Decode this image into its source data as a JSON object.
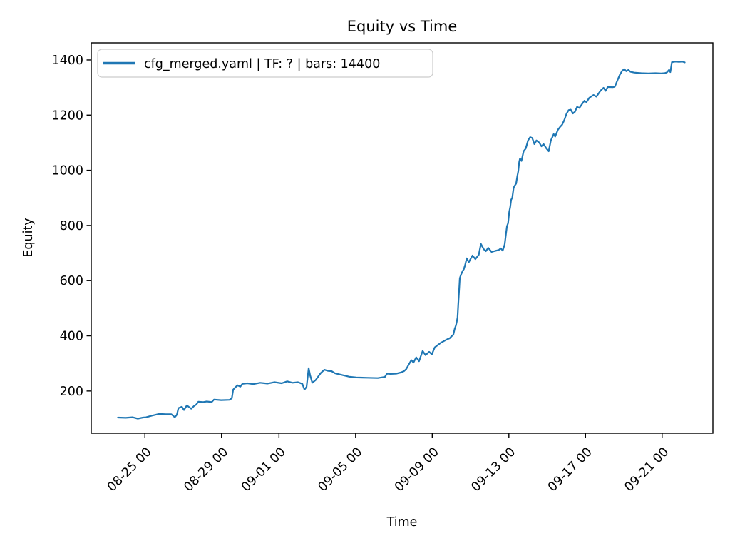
{
  "chart_data": {
    "type": "line",
    "title": "Equity vs Time",
    "xlabel": "Time",
    "ylabel": "Equity",
    "grid": false,
    "legend_position": "upper left",
    "legend": [
      {
        "label": "cfg_merged.yaml | TF: ? | bars: 14400",
        "color": "#1f77b4"
      }
    ],
    "x_unit": "days (0 = 08-23 00:00), labels show MM-DD HH",
    "xlim": [
      -0.8,
      31.65
    ],
    "ylim": [
      47,
      1462
    ],
    "xticks": {
      "positions": [
        2,
        6,
        9,
        13,
        17,
        21,
        25,
        29
      ],
      "labels": [
        "08-25 00",
        "08-29 00",
        "09-01 00",
        "09-05 00",
        "09-09 00",
        "09-13 00",
        "09-17 00",
        "09-21 00"
      ]
    },
    "yticks": [
      200,
      400,
      600,
      800,
      1000,
      1200,
      1400
    ],
    "series": [
      {
        "name": "cfg_merged.yaml | TF: ? | bars: 14400",
        "color": "#1f77b4",
        "linewidth": 2.2,
        "points": [
          [
            0.59,
            104
          ],
          [
            1.0,
            103
          ],
          [
            1.35,
            105
          ],
          [
            1.63,
            100
          ],
          [
            1.9,
            104
          ],
          [
            2.07,
            105
          ],
          [
            2.37,
            111
          ],
          [
            2.74,
            117
          ],
          [
            3.1,
            116
          ],
          [
            3.38,
            116
          ],
          [
            3.56,
            105
          ],
          [
            3.67,
            114
          ],
          [
            3.75,
            138
          ],
          [
            3.93,
            143
          ],
          [
            4.04,
            131
          ],
          [
            4.19,
            148
          ],
          [
            4.42,
            136
          ],
          [
            4.57,
            146
          ],
          [
            4.68,
            151
          ],
          [
            4.79,
            161
          ],
          [
            5.05,
            160
          ],
          [
            5.23,
            162
          ],
          [
            5.49,
            160
          ],
          [
            5.61,
            169
          ],
          [
            5.98,
            167
          ],
          [
            6.42,
            168
          ],
          [
            6.54,
            174
          ],
          [
            6.61,
            205
          ],
          [
            6.72,
            213
          ],
          [
            6.83,
            221
          ],
          [
            6.98,
            216
          ],
          [
            7.09,
            226
          ],
          [
            7.35,
            228
          ],
          [
            7.65,
            225
          ],
          [
            8.02,
            230
          ],
          [
            8.39,
            227
          ],
          [
            8.77,
            232
          ],
          [
            9.14,
            228
          ],
          [
            9.43,
            235
          ],
          [
            9.7,
            230
          ],
          [
            9.99,
            232
          ],
          [
            10.22,
            226
          ],
          [
            10.33,
            205
          ],
          [
            10.44,
            215
          ],
          [
            10.55,
            283
          ],
          [
            10.62,
            258
          ],
          [
            10.74,
            230
          ],
          [
            10.92,
            240
          ],
          [
            11.18,
            265
          ],
          [
            11.37,
            277
          ],
          [
            11.55,
            273
          ],
          [
            11.74,
            272
          ],
          [
            11.93,
            264
          ],
          [
            12.3,
            258
          ],
          [
            12.67,
            252
          ],
          [
            13.04,
            249
          ],
          [
            13.6,
            248
          ],
          [
            14.16,
            247
          ],
          [
            14.53,
            251
          ],
          [
            14.64,
            263
          ],
          [
            14.83,
            262
          ],
          [
            15.12,
            263
          ],
          [
            15.35,
            267
          ],
          [
            15.53,
            272
          ],
          [
            15.65,
            280
          ],
          [
            15.76,
            294
          ],
          [
            15.91,
            312
          ],
          [
            16.02,
            303
          ],
          [
            16.16,
            322
          ],
          [
            16.31,
            308
          ],
          [
            16.5,
            345
          ],
          [
            16.65,
            330
          ],
          [
            16.84,
            342
          ],
          [
            16.98,
            333
          ],
          [
            17.13,
            358
          ],
          [
            17.28,
            366
          ],
          [
            17.43,
            374
          ],
          [
            17.61,
            381
          ],
          [
            17.8,
            388
          ],
          [
            17.91,
            391
          ],
          [
            18.02,
            399
          ],
          [
            18.1,
            404
          ],
          [
            18.17,
            425
          ],
          [
            18.24,
            438
          ],
          [
            18.28,
            451
          ],
          [
            18.32,
            466
          ],
          [
            18.36,
            518
          ],
          [
            18.4,
            560
          ],
          [
            18.44,
            609
          ],
          [
            18.5,
            621
          ],
          [
            18.58,
            634
          ],
          [
            18.65,
            642
          ],
          [
            18.73,
            660
          ],
          [
            18.8,
            681
          ],
          [
            18.91,
            667
          ],
          [
            19.1,
            691
          ],
          [
            19.25,
            678
          ],
          [
            19.43,
            694
          ],
          [
            19.54,
            733
          ],
          [
            19.69,
            714
          ],
          [
            19.8,
            707
          ],
          [
            19.92,
            719
          ],
          [
            20.1,
            704
          ],
          [
            20.29,
            708
          ],
          [
            20.47,
            711
          ],
          [
            20.58,
            717
          ],
          [
            20.68,
            709
          ],
          [
            20.78,
            731
          ],
          [
            20.84,
            764
          ],
          [
            20.9,
            797
          ],
          [
            20.96,
            808
          ],
          [
            21.02,
            849
          ],
          [
            21.07,
            867
          ],
          [
            21.12,
            893
          ],
          [
            21.18,
            901
          ],
          [
            21.25,
            937
          ],
          [
            21.32,
            946
          ],
          [
            21.38,
            952
          ],
          [
            21.44,
            978
          ],
          [
            21.49,
            997
          ],
          [
            21.54,
            1030
          ],
          [
            21.58,
            1043
          ],
          [
            21.66,
            1034
          ],
          [
            21.77,
            1069
          ],
          [
            21.88,
            1079
          ],
          [
            22.0,
            1108
          ],
          [
            22.11,
            1120
          ],
          [
            22.22,
            1117
          ],
          [
            22.33,
            1095
          ],
          [
            22.44,
            1108
          ],
          [
            22.59,
            1100
          ],
          [
            22.7,
            1087
          ],
          [
            22.81,
            1095
          ],
          [
            22.96,
            1079
          ],
          [
            23.08,
            1069
          ],
          [
            23.19,
            1108
          ],
          [
            23.34,
            1131
          ],
          [
            23.42,
            1122
          ],
          [
            23.56,
            1147
          ],
          [
            23.67,
            1157
          ],
          [
            23.78,
            1165
          ],
          [
            23.9,
            1183
          ],
          [
            24.01,
            1205
          ],
          [
            24.12,
            1218
          ],
          [
            24.23,
            1220
          ],
          [
            24.34,
            1206
          ],
          [
            24.45,
            1212
          ],
          [
            24.56,
            1230
          ],
          [
            24.68,
            1226
          ],
          [
            24.82,
            1240
          ],
          [
            24.94,
            1252
          ],
          [
            25.05,
            1247
          ],
          [
            25.2,
            1263
          ],
          [
            25.31,
            1268
          ],
          [
            25.42,
            1273
          ],
          [
            25.57,
            1267
          ],
          [
            25.79,
            1289
          ],
          [
            25.94,
            1299
          ],
          [
            26.05,
            1288
          ],
          [
            26.16,
            1302
          ],
          [
            26.42,
            1301
          ],
          [
            26.53,
            1303
          ],
          [
            26.68,
            1328
          ],
          [
            26.79,
            1346
          ],
          [
            26.91,
            1360
          ],
          [
            27.02,
            1367
          ],
          [
            27.13,
            1359
          ],
          [
            27.24,
            1364
          ],
          [
            27.35,
            1357
          ],
          [
            27.54,
            1354
          ],
          [
            27.91,
            1352
          ],
          [
            28.28,
            1351
          ],
          [
            28.65,
            1352
          ],
          [
            28.95,
            1351
          ],
          [
            29.13,
            1352
          ],
          [
            29.25,
            1355
          ],
          [
            29.36,
            1364
          ],
          [
            29.43,
            1356
          ],
          [
            29.51,
            1392
          ],
          [
            29.7,
            1394
          ],
          [
            29.88,
            1393
          ],
          [
            30.07,
            1394
          ],
          [
            30.18,
            1391
          ]
        ]
      }
    ]
  }
}
